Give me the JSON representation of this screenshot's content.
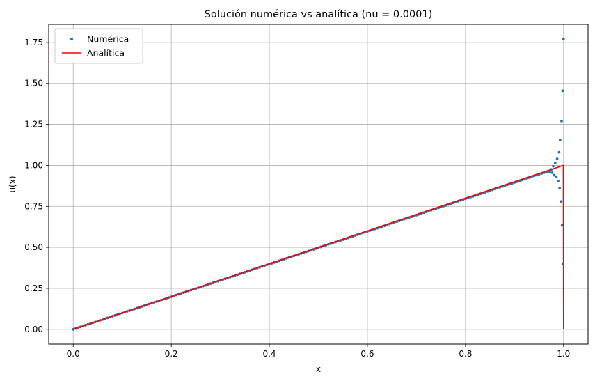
{
  "chart_data": {
    "type": "line",
    "title": "Solución numérica vs analítica (nu = 0.0001)",
    "xlabel": "x",
    "ylabel": "u(x)",
    "xlim": [
      -0.05,
      1.05
    ],
    "ylim": [
      -0.09,
      1.86
    ],
    "x_ticks": [
      0.0,
      0.2,
      0.4,
      0.6,
      0.8,
      1.0
    ],
    "x_tick_labels": [
      "0.0",
      "0.2",
      "0.4",
      "0.6",
      "0.8",
      "1.0"
    ],
    "y_ticks": [
      0.0,
      0.25,
      0.5,
      0.75,
      1.0,
      1.25,
      1.5,
      1.75
    ],
    "y_tick_labels": [
      "0.00",
      "0.25",
      "0.50",
      "0.75",
      "1.00",
      "1.25",
      "1.50",
      "1.75"
    ],
    "grid": true,
    "legend": {
      "position": "top-left",
      "entries": [
        {
          "label": "Numérica",
          "style": "markers",
          "color": "#1f77b4"
        },
        {
          "label": "Analítica",
          "style": "line",
          "color": "#ff0000"
        }
      ]
    },
    "series": [
      {
        "name": "Numérica",
        "style": "markers",
        "color": "#1f77b4",
        "linear_segment": {
          "x_start": 0.0,
          "x_end": 0.965,
          "slope": 0.995,
          "point_count": 194
        },
        "points": [
          [
            0.966,
            0.96
          ],
          [
            0.969,
            0.965
          ],
          [
            0.972,
            0.96
          ],
          [
            0.975,
            0.975
          ],
          [
            0.977,
            0.955
          ],
          [
            0.979,
            0.995
          ],
          [
            0.981,
            0.94
          ],
          [
            0.983,
            1.015
          ],
          [
            0.985,
            0.93
          ],
          [
            0.987,
            1.04
          ],
          [
            0.989,
            0.905
          ],
          [
            0.991,
            1.08
          ],
          [
            0.992,
            0.86
          ],
          [
            0.993,
            1.155
          ],
          [
            0.995,
            0.78
          ],
          [
            0.996,
            1.27
          ],
          [
            0.997,
            0.635
          ],
          [
            0.998,
            1.455
          ],
          [
            0.999,
            0.4
          ],
          [
            1.0,
            1.77
          ]
        ]
      },
      {
        "name": "Analítica",
        "style": "line",
        "color": "#ff0000",
        "points": [
          [
            0.0,
            0.0
          ],
          [
            0.9995,
            1.0
          ],
          [
            1.0,
            0.0
          ]
        ]
      }
    ]
  }
}
